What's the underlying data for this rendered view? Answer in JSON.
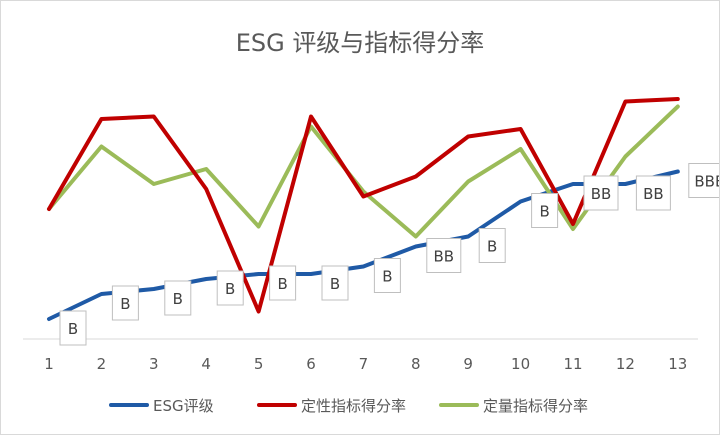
{
  "chart_data": {
    "type": "line",
    "title": "ESG 评级与指标得分率",
    "xlabel": "",
    "ylabel": "",
    "x": [
      "1",
      "2",
      "3",
      "4",
      "5",
      "6",
      "7",
      "8",
      "9",
      "10",
      "11",
      "12",
      "13"
    ],
    "ylim": [
      0,
      100
    ],
    "grid": false,
    "legend_position": "bottom",
    "series": [
      {
        "name": "ESG评级",
        "color": "#1f5aa6",
        "values": [
          8,
          18,
          20,
          24,
          26,
          26,
          29,
          37,
          41,
          55,
          62,
          62,
          67
        ],
        "labels": [
          "B",
          "B",
          "B",
          "B",
          "B",
          "B",
          "B",
          "BB",
          "B",
          "B",
          "BB",
          "BB",
          "BBB"
        ]
      },
      {
        "name": "定性指标得分率",
        "color": "#c00000",
        "values": [
          52,
          88,
          89,
          60,
          11,
          89,
          57,
          65,
          81,
          84,
          46,
          95,
          96
        ]
      },
      {
        "name": "定量指标得分率",
        "color": "#9bbb59",
        "values": [
          52,
          77,
          62,
          68,
          45,
          85,
          59,
          41,
          63,
          76,
          44,
          73,
          93
        ]
      }
    ]
  }
}
